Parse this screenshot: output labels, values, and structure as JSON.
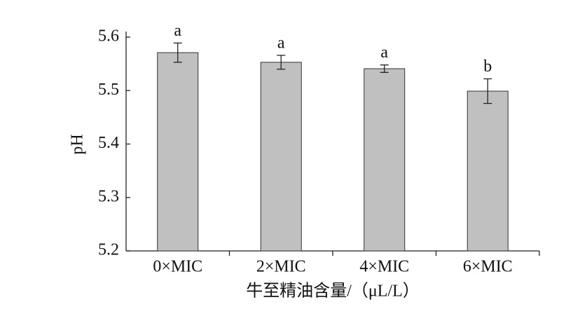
{
  "chart_data": {
    "type": "bar",
    "x_label": "牛至精油含量/（μL/L）",
    "y_label": "pH",
    "categories": [
      "0×MIC",
      "2×MIC",
      "4×MIC",
      "6×MIC"
    ],
    "values": [
      5.571,
      5.553,
      5.541,
      5.499
    ],
    "errors": [
      0.018,
      0.013,
      0.007,
      0.023
    ],
    "annotations": [
      "a",
      "a",
      "a",
      "b"
    ],
    "color": "#c0c0c0",
    "ylim": [
      5.2,
      5.6
    ],
    "yticks": [
      5.6,
      5.5,
      5.4,
      5.3,
      5.2
    ]
  }
}
